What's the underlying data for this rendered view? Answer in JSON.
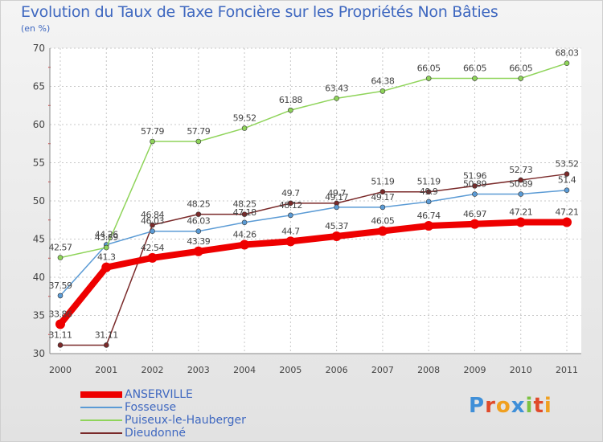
{
  "header": {
    "title": "Evolution du Taux de Taxe Foncière sur les Propriétés Non Bâties",
    "subtitle": "(en %)"
  },
  "logo": {
    "letters": [
      "P",
      "r",
      "o",
      "x",
      "i",
      "t",
      "i"
    ],
    "colors": [
      "#3f8fd8",
      "#e04a2a",
      "#f0a020",
      "#3f8fd8",
      "#7cc242",
      "#e04a2a",
      "#f0a020"
    ]
  },
  "chart_data": {
    "type": "line",
    "title": "Evolution du Taux de Taxe Foncière sur les Propriétés Non Bâties",
    "ylabel": "(en %)",
    "xlabel": "",
    "x": [
      "2000",
      "2001",
      "2002",
      "2003",
      "2004",
      "2005",
      "2006",
      "2007",
      "2008",
      "2009",
      "2010",
      "2011"
    ],
    "ylim": [
      30,
      70
    ],
    "yticks": [
      "30",
      "35",
      "40",
      "45",
      "50",
      "55",
      "60",
      "65",
      "70"
    ],
    "grid": true,
    "legend_position": "bottom-left",
    "series": [
      {
        "name": "ANSERVILLE",
        "color": "#ee0000",
        "values": [
          33.86,
          41.3,
          42.54,
          43.39,
          44.26,
          44.7,
          45.37,
          46.05,
          46.74,
          46.97,
          47.21,
          47.21
        ],
        "labels": [
          "33.86",
          "41.3",
          "42.54",
          "43.39",
          "44.26",
          "44.7",
          "45.37",
          "46.05",
          "46.74",
          "46.97",
          "47.21",
          "47.21"
        ]
      },
      {
        "name": "Fosseuse",
        "color": "#5b9bd5",
        "values": [
          37.59,
          44.26,
          46.03,
          46.03,
          47.18,
          48.12,
          49.17,
          49.17,
          49.9,
          50.89,
          50.89,
          51.4
        ],
        "labels": [
          "37.59",
          "44.26",
          "46.03",
          "46.03",
          "47.18",
          "48.12",
          "49.17",
          "49.17",
          "49.9",
          "50.89",
          "50.89",
          "51.4"
        ]
      },
      {
        "name": "Puiseux-le-Hauberger",
        "color": "#8fd45a",
        "values": [
          42.57,
          43.89,
          57.79,
          57.79,
          59.52,
          61.88,
          63.43,
          64.38,
          66.05,
          66.05,
          66.05,
          68.03
        ],
        "labels": [
          "42.57",
          "43.89",
          "57.79",
          "57.79",
          "59.52",
          "61.88",
          "63.43",
          "64.38",
          "66.05",
          "66.05",
          "66.05",
          "68.03"
        ]
      },
      {
        "name": "Dieudonné",
        "color": "#7a2a2a",
        "values": [
          31.11,
          31.11,
          46.84,
          48.25,
          48.25,
          49.7,
          49.7,
          51.19,
          51.19,
          51.96,
          52.73,
          53.52
        ],
        "labels": [
          "31.11",
          "31.11",
          "46.84",
          "48.25",
          "48.25",
          "49.7",
          "49.7",
          "51.19",
          "51.19",
          "51.96",
          "52.73",
          "53.52"
        ]
      }
    ]
  }
}
